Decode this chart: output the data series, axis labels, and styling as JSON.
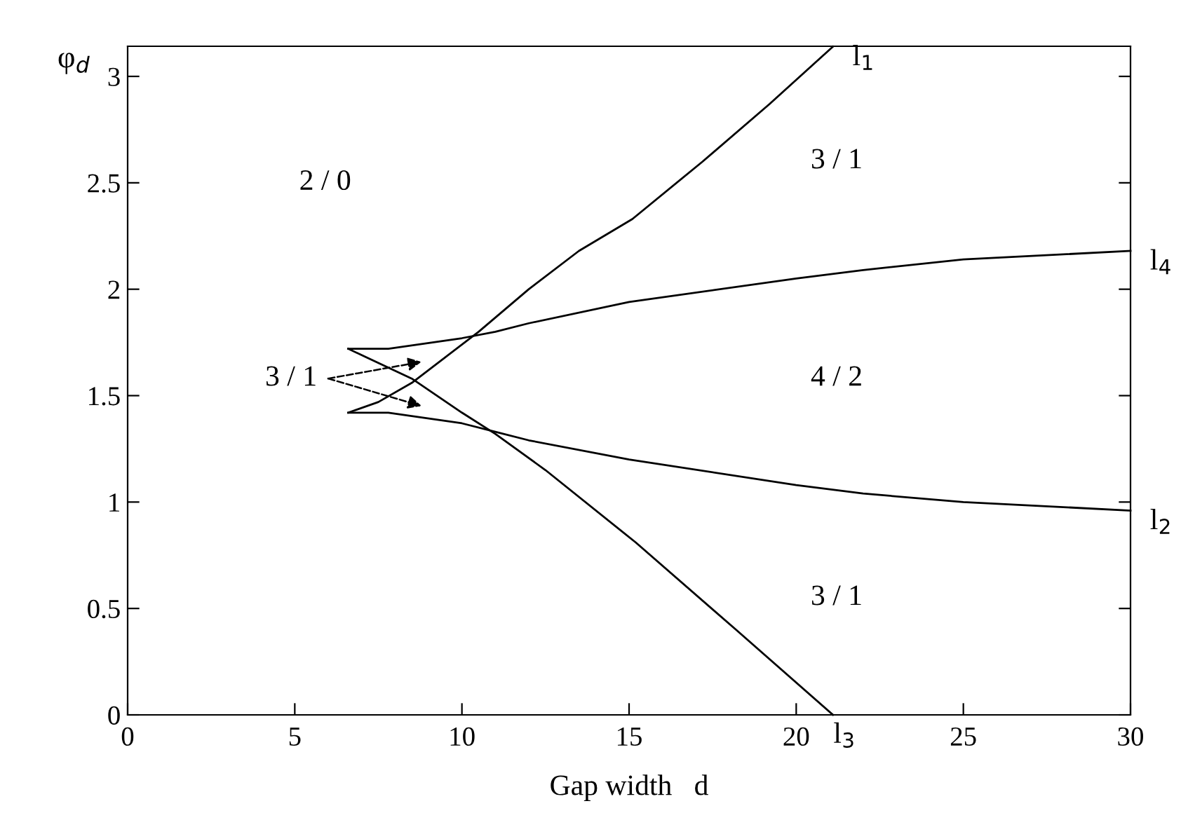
{
  "chart_data": {
    "type": "line",
    "xlabel": "Gap width   d",
    "ylabel": "φ$_{d}$",
    "xlim": [
      0,
      30
    ],
    "xticks": [
      0,
      5,
      10,
      15,
      20,
      25,
      30
    ],
    "ylim": [
      0,
      3.1416
    ],
    "yticks": [
      0,
      0.5,
      1,
      1.5,
      2,
      2.5,
      3
    ],
    "grid": false,
    "legend": "right",
    "marker": "none",
    "line_style": "solid",
    "series": [
      {
        "name": "l$_{1}$",
        "color": "#000000",
        "x": [
          6.6,
          7.5,
          8.5,
          9.5,
          10.5,
          12,
          13.5,
          15.1,
          17.2,
          19.2,
          21.1
        ],
        "values": [
          1.42,
          1.47,
          1.56,
          1.68,
          1.8,
          2.0,
          2.18,
          2.33,
          2.6,
          2.87,
          3.14
        ]
      },
      {
        "name": "l$_{4}$",
        "color": "#000000",
        "x": [
          6.6,
          7.8,
          10,
          11,
          12,
          15,
          20,
          22,
          25,
          30
        ],
        "values": [
          1.72,
          1.72,
          1.77,
          1.8,
          1.84,
          1.94,
          2.05,
          2.09,
          2.14,
          2.18
        ]
      },
      {
        "name": "l$_{2}$",
        "color": "#000000",
        "x": [
          6.6,
          7.8,
          10,
          11,
          12,
          15,
          20,
          22,
          25,
          30
        ],
        "values": [
          1.42,
          1.42,
          1.37,
          1.33,
          1.29,
          1.2,
          1.08,
          1.04,
          1.0,
          0.96
        ]
      },
      {
        "name": "l$_{3}$",
        "color": "#000000",
        "x": [
          6.6,
          8.5,
          10,
          11,
          12.5,
          15.2,
          18.2,
          21.1
        ],
        "values": [
          1.72,
          1.58,
          1.42,
          1.32,
          1.15,
          0.81,
          0.4,
          0.0
        ]
      }
    ],
    "annotations": [
      "2 / 0",
      "3 / 1",
      "4 / 2",
      "3 / 1",
      "3 / 1"
    ]
  }
}
